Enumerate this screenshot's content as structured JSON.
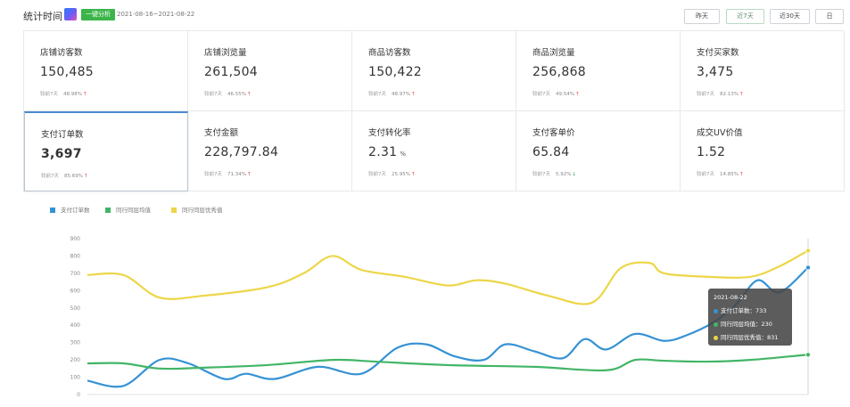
{
  "header": {
    "title": "统计时间",
    "logo_icon": "app-logo-icon",
    "badge": "一键分析",
    "date_range": "2021-08-16~2021-08-22",
    "buttons": {
      "yesterday": "昨天",
      "last7": "近7天",
      "last30": "近30天",
      "day": "日"
    },
    "active_button": "last7"
  },
  "stats": [
    {
      "label": "店铺访客数",
      "value": "150,485",
      "cmp_label": "较前7天",
      "cmp_pct": "48.98%",
      "trend": "up"
    },
    {
      "label": "店铺浏览量",
      "value": "261,504",
      "cmp_label": "较前7天",
      "cmp_pct": "46.55%",
      "trend": "up"
    },
    {
      "label": "商品访客数",
      "value": "150,422",
      "cmp_label": "较前7天",
      "cmp_pct": "48.97%",
      "trend": "up"
    },
    {
      "label": "商品浏览量",
      "value": "256,868",
      "cmp_label": "较前7天",
      "cmp_pct": "49.54%",
      "trend": "up"
    },
    {
      "label": "支付买家数",
      "value": "3,475",
      "cmp_label": "较前7天",
      "cmp_pct": "82.13%",
      "trend": "up"
    },
    {
      "label": "支付订单数",
      "value": "3,697",
      "cmp_label": "较前7天",
      "cmp_pct": "85.69%",
      "trend": "up"
    },
    {
      "label": "支付金额",
      "value": "228,797.84",
      "cmp_label": "较前7天",
      "cmp_pct": "71.34%",
      "trend": "up"
    },
    {
      "label": "支付转化率",
      "value": "2.31",
      "unit": "%",
      "cmp_label": "较前7天",
      "cmp_pct": "25.95%",
      "trend": "up"
    },
    {
      "label": "支付客单价",
      "value": "65.84",
      "cmp_label": "较前7天",
      "cmp_pct": "5.92%",
      "trend": "down"
    },
    {
      "label": "成交UV价值",
      "value": "1.52",
      "cmp_label": "较前7天",
      "cmp_pct": "14.85%",
      "trend": "up"
    }
  ],
  "selected_stat": 5,
  "colors": {
    "blue": "#3592d4",
    "green": "#42b567",
    "yellow": "#ecd648",
    "up": "#e4393c",
    "down": "#2ea04a"
  },
  "tooltip": {
    "date": "2021-08-22",
    "rows": [
      {
        "name": "支付订单数",
        "value": "733",
        "color": "#3592d4"
      },
      {
        "name": "同行同层均值",
        "value": "230",
        "color": "#42b567"
      },
      {
        "name": "同行同层优秀值",
        "value": "831",
        "color": "#ecd648"
      }
    ]
  },
  "chart_data": {
    "type": "line",
    "ylim": [
      0,
      900
    ],
    "yticks": [
      0,
      100,
      200,
      300,
      400,
      500,
      600,
      700,
      800,
      900
    ],
    "x_range": [
      0,
      1
    ],
    "x_note": "x-axis date labels are cut off at the bottom of the screenshot",
    "series": [
      {
        "name": "支付订单数",
        "color": "#3592d4",
        "x": [
          0.0,
          0.05,
          0.1,
          0.14,
          0.19,
          0.22,
          0.26,
          0.32,
          0.38,
          0.43,
          0.47,
          0.51,
          0.55,
          0.58,
          0.62,
          0.66,
          0.69,
          0.72,
          0.76,
          0.8,
          0.83,
          0.87,
          0.9,
          0.93,
          0.96,
          1.0
        ],
        "values": [
          80,
          50,
          200,
          180,
          90,
          120,
          90,
          160,
          120,
          270,
          290,
          220,
          200,
          290,
          250,
          210,
          320,
          260,
          350,
          310,
          340,
          420,
          520,
          660,
          590,
          733
        ]
      },
      {
        "name": "同行同层均值",
        "color": "#42b567",
        "x": [
          0.0,
          0.05,
          0.1,
          0.16,
          0.25,
          0.34,
          0.4,
          0.5,
          0.62,
          0.72,
          0.76,
          0.8,
          0.86,
          0.92,
          1.0
        ],
        "values": [
          180,
          180,
          150,
          155,
          170,
          200,
          190,
          170,
          160,
          140,
          200,
          195,
          190,
          200,
          230
        ]
      },
      {
        "name": "同行同层优秀值",
        "color": "#ecd648",
        "x": [
          0.0,
          0.05,
          0.1,
          0.16,
          0.25,
          0.3,
          0.34,
          0.38,
          0.44,
          0.5,
          0.54,
          0.58,
          0.64,
          0.7,
          0.74,
          0.78,
          0.8,
          0.86,
          0.92,
          0.96,
          1.0
        ],
        "values": [
          690,
          690,
          560,
          570,
          620,
          700,
          800,
          720,
          680,
          630,
          660,
          640,
          570,
          530,
          730,
          760,
          700,
          680,
          680,
          740,
          831
        ]
      }
    ]
  }
}
